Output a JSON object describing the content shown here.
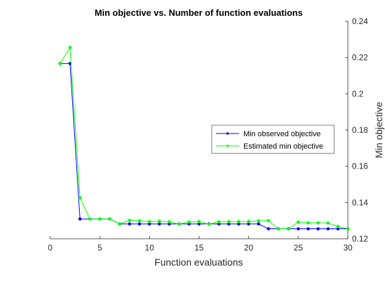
{
  "chart_data": {
    "type": "line",
    "title": "Min objective vs. Number of function evaluations",
    "xlabel": "Function evaluations",
    "ylabel": "Min objective",
    "xlim": [
      0,
      30
    ],
    "ylim": [
      0.12,
      0.24
    ],
    "xticks": [
      0,
      5,
      10,
      15,
      20,
      25,
      30
    ],
    "yticks": [
      0.12,
      0.14,
      0.16,
      0.18,
      0.2,
      0.22,
      0.24
    ],
    "xtick_labels": [
      "0",
      "5",
      "10",
      "15",
      "20",
      "25",
      "30"
    ],
    "ytick_labels": [
      "0.12",
      "0.14",
      "0.16",
      "0.18",
      "0.2",
      "0.22",
      "0.24"
    ],
    "y_axis_side": "right",
    "grid": false,
    "legend_position": "east",
    "x": [
      1,
      2,
      3,
      4,
      5,
      6,
      7,
      8,
      9,
      10,
      11,
      12,
      13,
      14,
      15,
      16,
      17,
      18,
      19,
      20,
      21,
      22,
      23,
      24,
      25,
      26,
      27,
      28,
      29,
      30
    ],
    "series": [
      {
        "name": "Min observed objective",
        "color": "#0000ff",
        "values": [
          0.2167,
          0.2167,
          0.1309,
          0.1309,
          0.1309,
          0.1309,
          0.1282,
          0.1282,
          0.1282,
          0.1282,
          0.1282,
          0.1282,
          0.1282,
          0.1282,
          0.1282,
          0.1282,
          0.1282,
          0.1282,
          0.1282,
          0.1282,
          0.1282,
          0.1255,
          0.1255,
          0.1255,
          0.1255,
          0.1255,
          0.1255,
          0.1255,
          0.1255,
          0.1255
        ]
      },
      {
        "name": "Estimated min objective",
        "color": "#00ff00",
        "values": [
          0.2167,
          0.2256,
          0.1426,
          0.1309,
          0.1309,
          0.1309,
          0.1282,
          0.1302,
          0.1299,
          0.1295,
          0.1297,
          0.1294,
          0.1281,
          0.1293,
          0.1295,
          0.128,
          0.1294,
          0.1295,
          0.1295,
          0.1296,
          0.1299,
          0.13,
          0.1255,
          0.1256,
          0.1292,
          0.1288,
          0.1288,
          0.1287,
          0.1268,
          0.1255
        ]
      }
    ]
  }
}
